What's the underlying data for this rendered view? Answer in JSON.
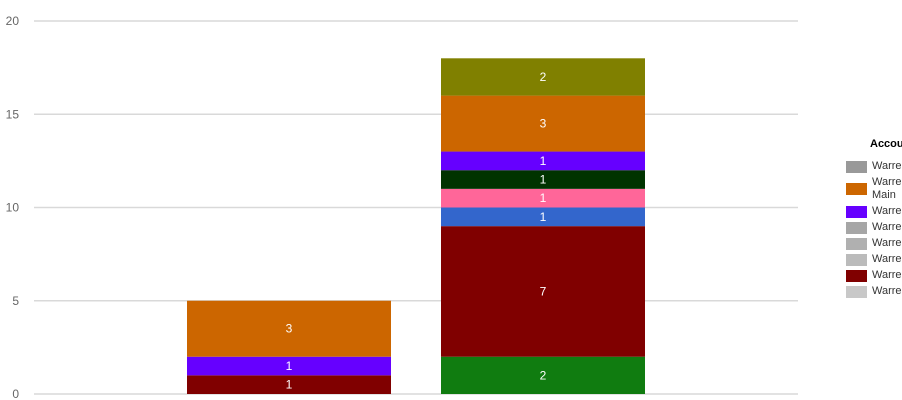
{
  "chart_data": {
    "type": "bar",
    "stacked": true,
    "grid": true,
    "ylim": [
      0,
      20
    ],
    "yticks": [
      0,
      5,
      10,
      15,
      20
    ],
    "categories": [
      "",
      ""
    ],
    "series": [
      {
        "color": "#107C10",
        "values": [
          0,
          2
        ]
      },
      {
        "color": "#800000",
        "values": [
          1,
          7
        ]
      },
      {
        "color": "#3366CC",
        "values": [
          0,
          1
        ]
      },
      {
        "color": "#FF6699",
        "values": [
          0,
          1
        ]
      },
      {
        "color": "#003300",
        "values": [
          0,
          1
        ]
      },
      {
        "color": "#6600FF",
        "values": [
          1,
          1
        ]
      },
      {
        "color": "#CC6600",
        "values": [
          3,
          3
        ]
      },
      {
        "color": "#808000",
        "values": [
          0,
          2
        ]
      }
    ],
    "legend": {
      "title": "Accou",
      "position": "right",
      "items": [
        {
          "label": "Warre",
          "color": "#999999"
        },
        {
          "label": "Warre\nMain",
          "color": "#CC6600"
        },
        {
          "label": "Warre",
          "color": "#6600FF"
        },
        {
          "label": "Warre",
          "color": "#A6A6A6"
        },
        {
          "label": "Warre",
          "color": "#B0B0B0"
        },
        {
          "label": "Warre",
          "color": "#BBBBBB"
        },
        {
          "label": "Warre",
          "color": "#800000"
        },
        {
          "label": "Warre",
          "color": "#C8C8C8"
        }
      ]
    }
  }
}
